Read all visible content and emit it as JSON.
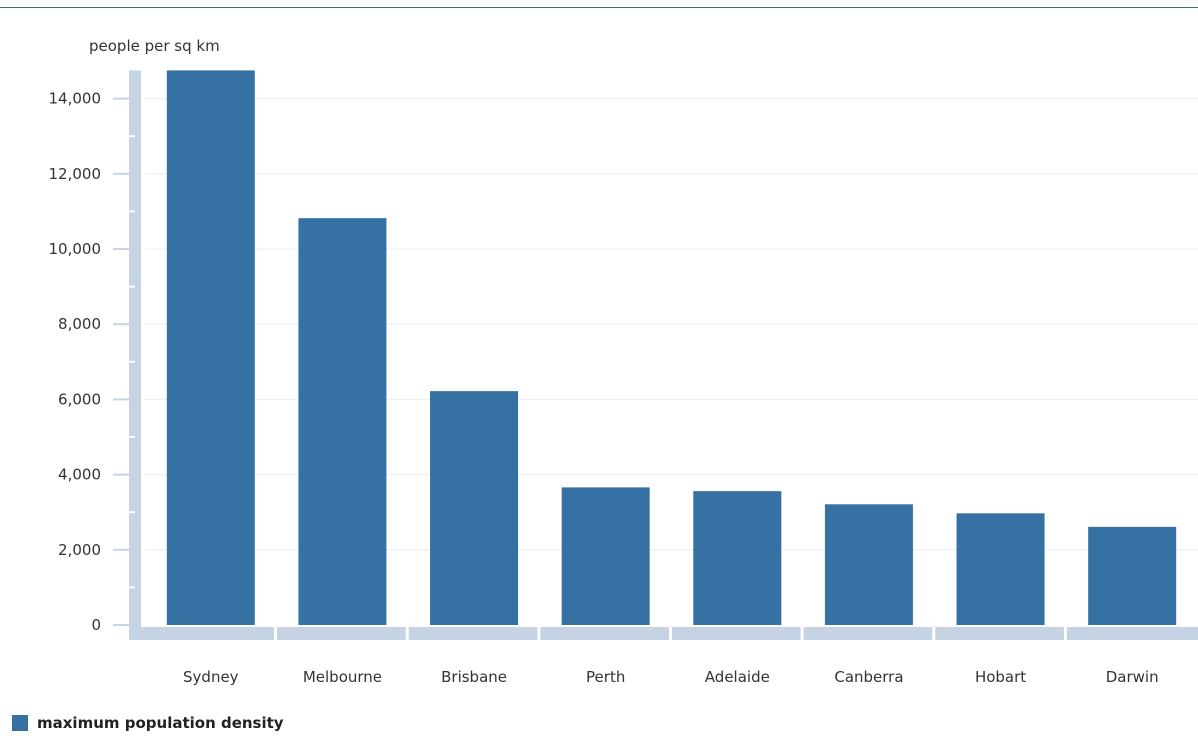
{
  "chart_data": {
    "type": "bar",
    "title": "",
    "xlabel": "",
    "ylabel": "people per sq km",
    "ylim": [
      0,
      14750
    ],
    "yticks": [
      0,
      2000,
      4000,
      6000,
      8000,
      10000,
      12000,
      14000
    ],
    "ytick_labels": [
      "0",
      "2,000",
      "4,000",
      "6,000",
      "8,000",
      "10,000",
      "12,000",
      "14,000"
    ],
    "categories": [
      "Sydney",
      "Melbourne",
      "Brisbane",
      "Perth",
      "Adelaide",
      "Canberra",
      "Hobart",
      "Darwin"
    ],
    "series": [
      {
        "name": "maximum population density",
        "values": [
          14750,
          10820,
          6220,
          3660,
          3560,
          3210,
          2970,
          2610
        ],
        "color": "#3571a2"
      }
    ],
    "grid": true,
    "legend": "bottom-left"
  }
}
